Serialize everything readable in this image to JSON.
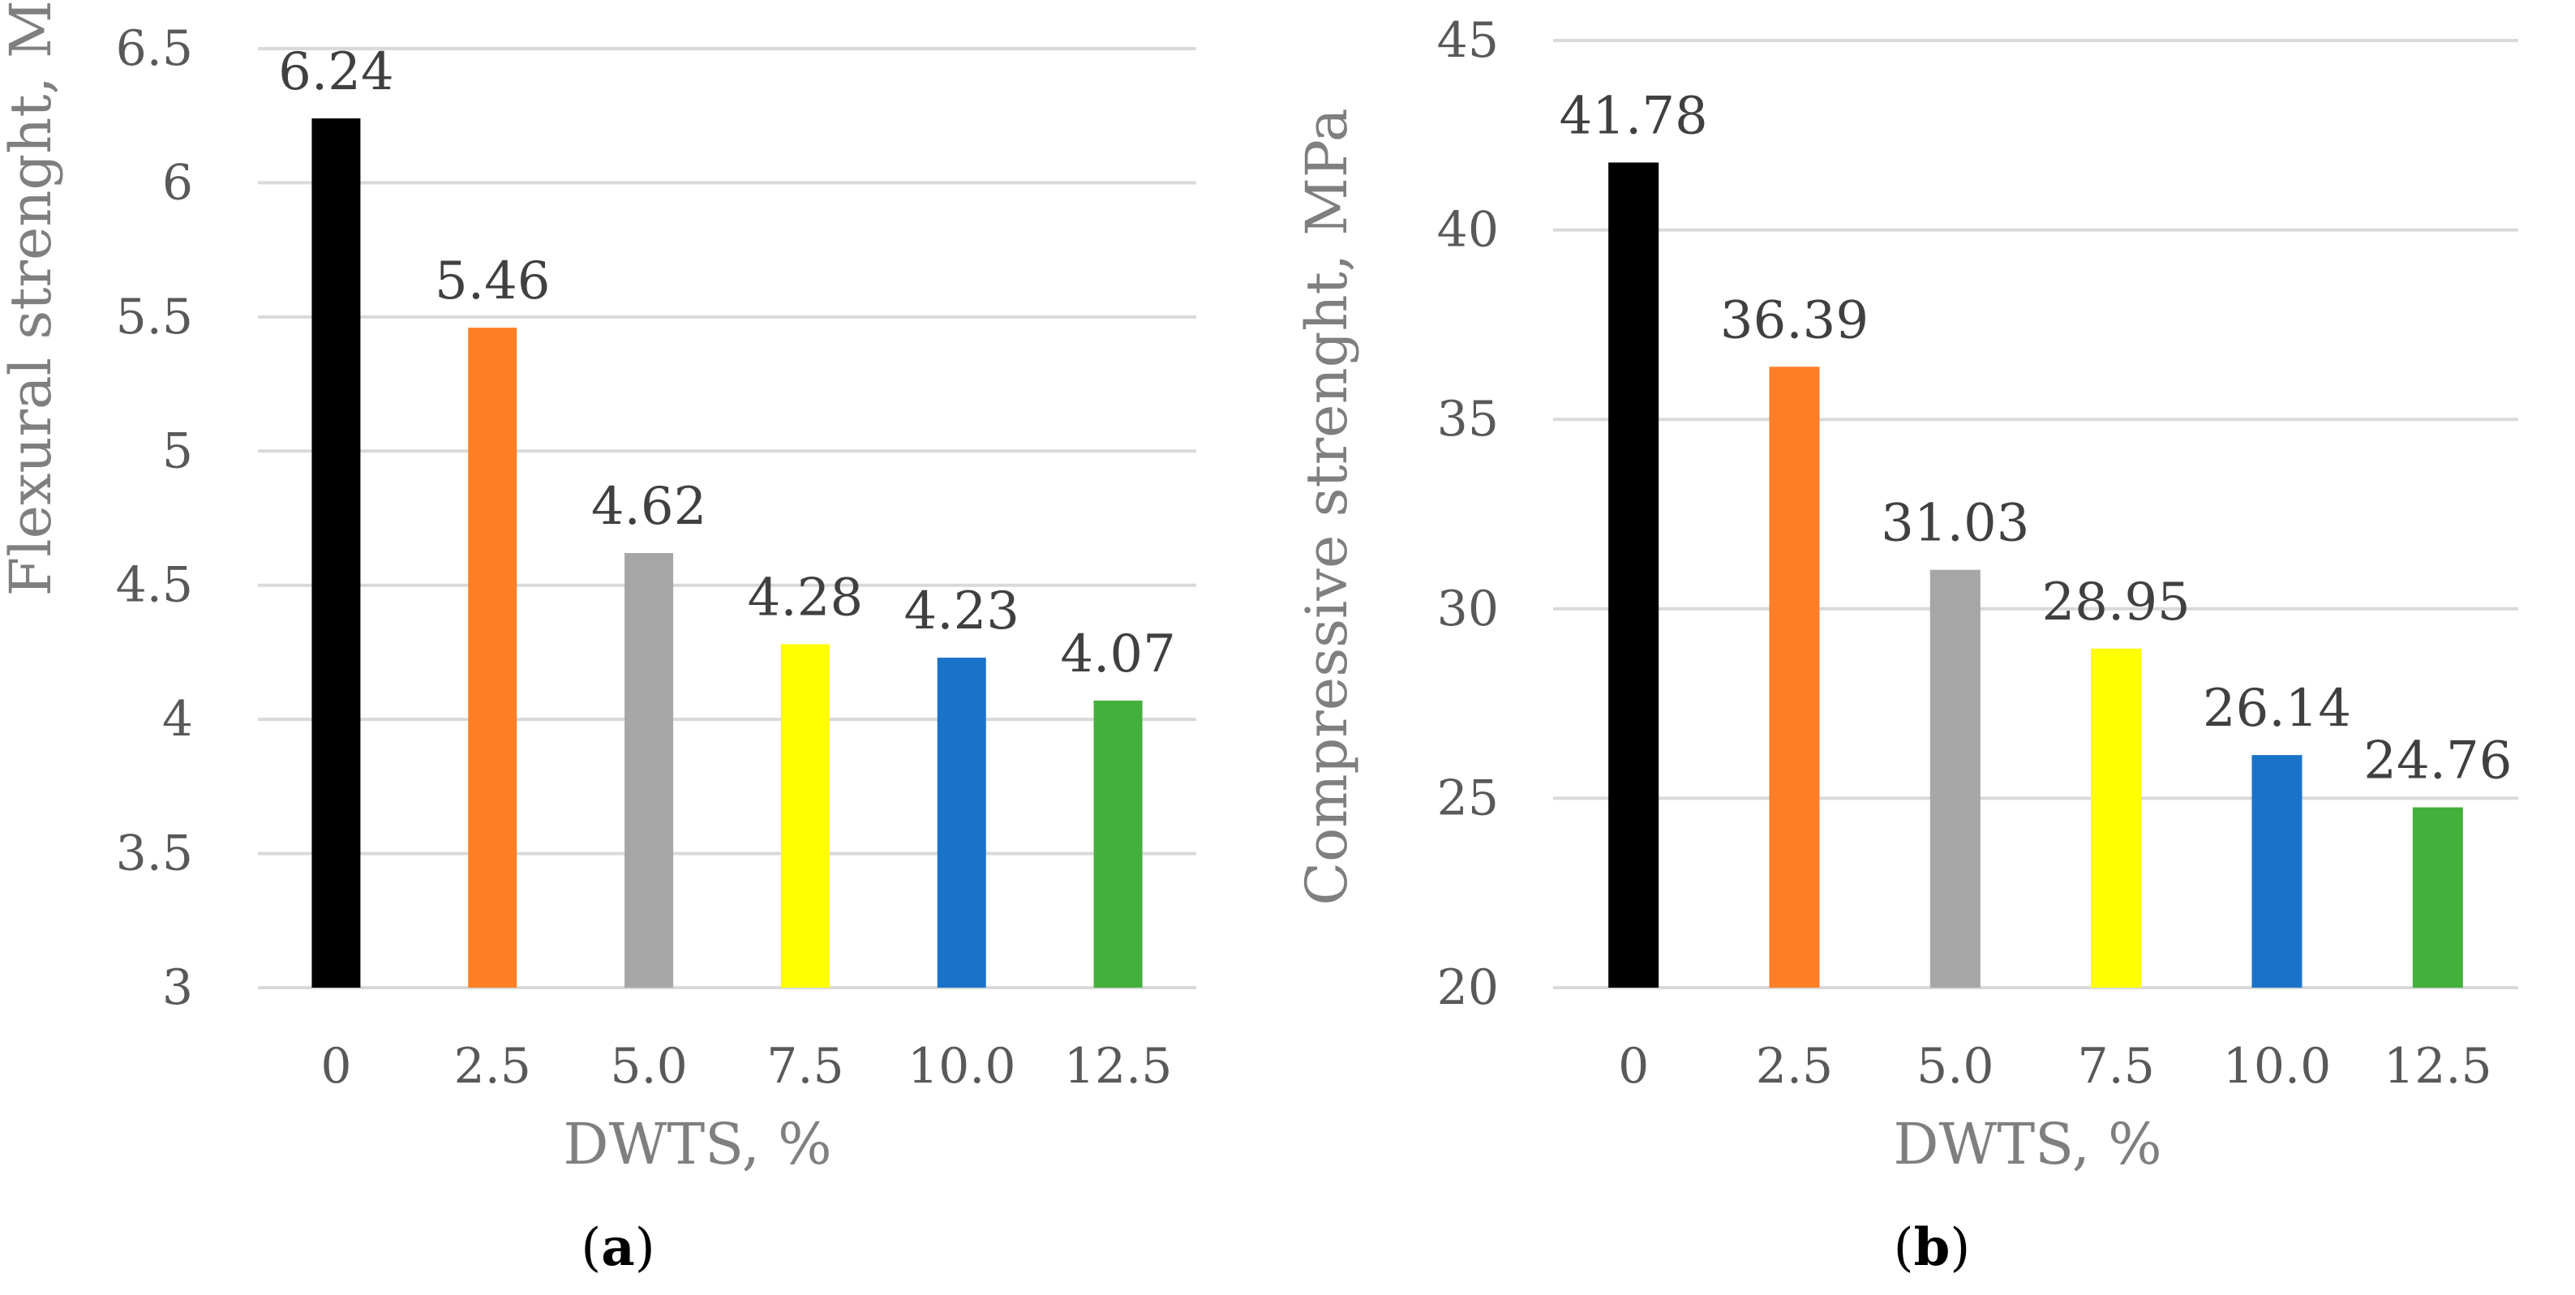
{
  "chart_data": [
    {
      "type": "bar",
      "panel": "a",
      "categories": [
        "0",
        "2.5",
        "5.0",
        "7.5",
        "10.0",
        "12.5"
      ],
      "values": [
        6.24,
        5.46,
        4.62,
        4.28,
        4.23,
        4.07
      ],
      "value_labels": [
        "6.24",
        "5.46",
        "4.62",
        "4.28",
        "4.23",
        "4.07"
      ],
      "colors": [
        "#000000",
        "#ff7f27",
        "#a6a6a6",
        "#ffff00",
        "#1a73c8",
        "#43b03b"
      ],
      "xlabel": "DWTS, %",
      "ylabel": "Flexural strenght, MPa",
      "ylim": [
        3,
        6.5
      ],
      "yticks": [
        3,
        3.5,
        4,
        4.5,
        5,
        5.5,
        6,
        6.5
      ],
      "ytick_labels": [
        "3",
        "3.5",
        "4",
        "4.5",
        "5",
        "5.5",
        "6",
        "6.5"
      ],
      "grid": true,
      "caption": {
        "open": "(",
        "letter": "a",
        "close": ")"
      }
    },
    {
      "type": "bar",
      "panel": "b",
      "categories": [
        "0",
        "2.5",
        "5.0",
        "7.5",
        "10.0",
        "12.5"
      ],
      "values": [
        41.78,
        36.39,
        31.03,
        28.95,
        26.14,
        24.76
      ],
      "value_labels": [
        "41.78",
        "36.39",
        "31.03",
        "28.95",
        "26.14",
        "24.76"
      ],
      "colors": [
        "#000000",
        "#ff7f27",
        "#a6a6a6",
        "#ffff00",
        "#1a73c8",
        "#43b03b"
      ],
      "xlabel": "DWTS, %",
      "ylabel": "Compressive strenght, MPa",
      "ylim": [
        20,
        45
      ],
      "yticks": [
        20,
        25,
        30,
        35,
        40,
        45
      ],
      "ytick_labels": [
        "20",
        "25",
        "30",
        "35",
        "40",
        "45"
      ],
      "grid": true,
      "caption": {
        "open": "(",
        "letter": "b",
        "close": ")"
      }
    }
  ]
}
